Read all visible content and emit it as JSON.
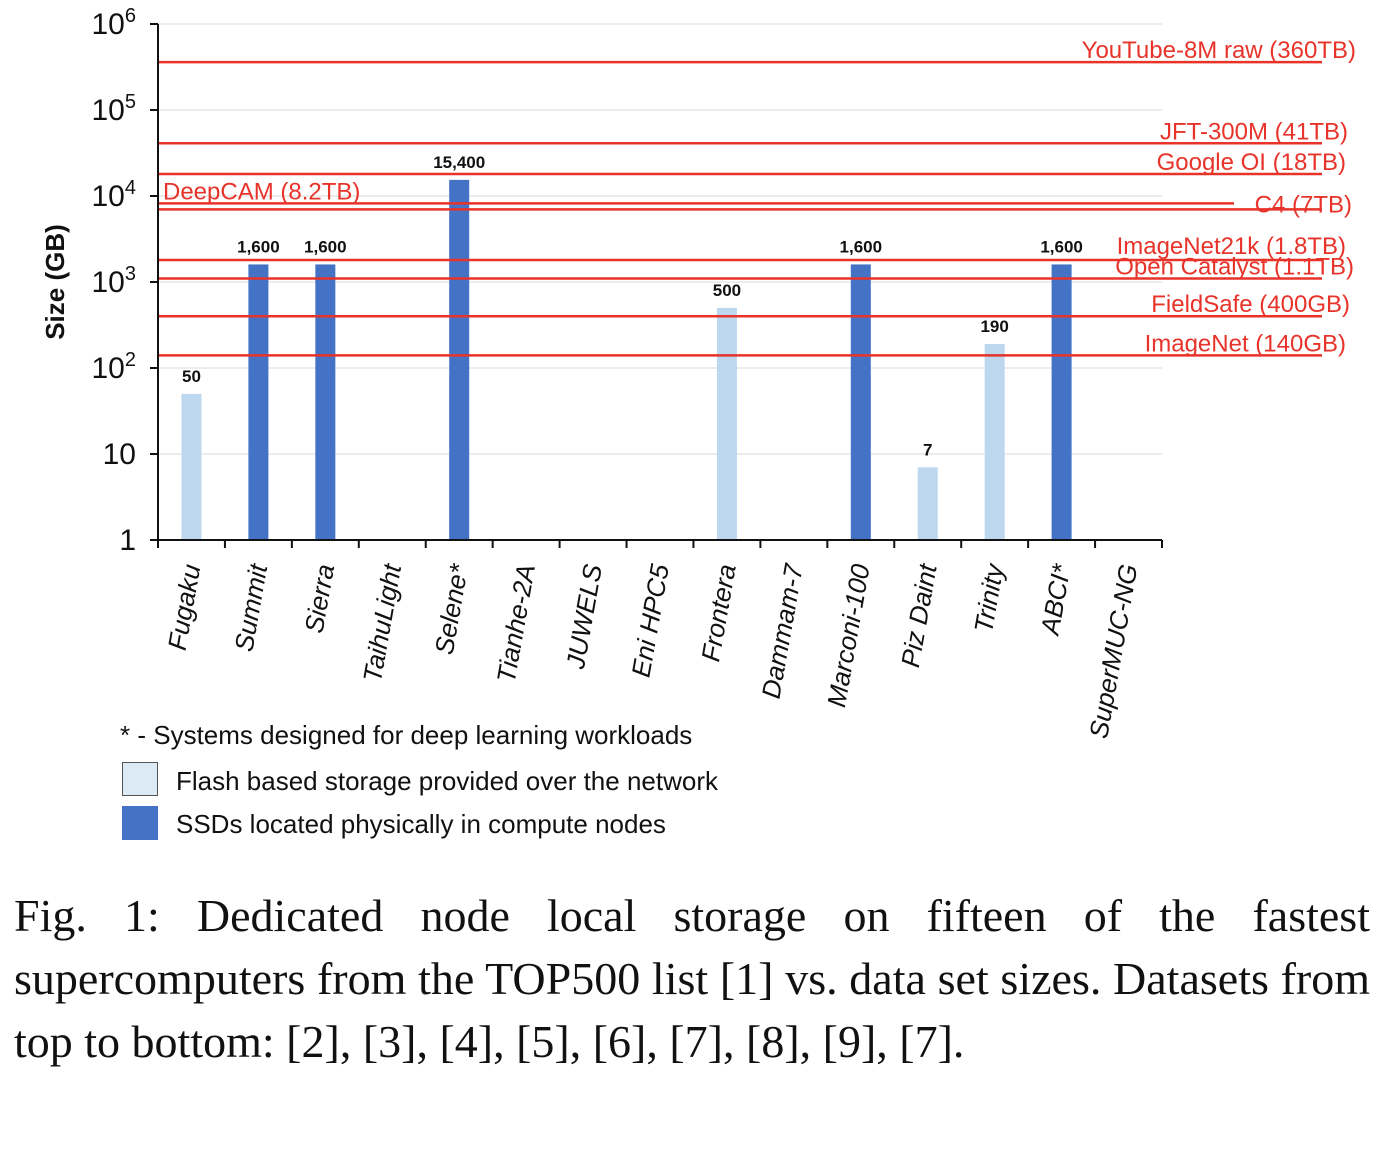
{
  "chart_data": {
    "type": "bar",
    "y_scale": "log",
    "ylabel": "Size (GB)",
    "ylim": [
      1,
      1000000
    ],
    "yticks": [
      {
        "value": 1,
        "label": "1",
        "sup": ""
      },
      {
        "value": 10,
        "label": "10",
        "sup": ""
      },
      {
        "value": 100,
        "label": "10",
        "sup": "2"
      },
      {
        "value": 1000,
        "label": "10",
        "sup": "3"
      },
      {
        "value": 10000,
        "label": "10",
        "sup": "4"
      },
      {
        "value": 100000,
        "label": "10",
        "sup": "5"
      },
      {
        "value": 1000000,
        "label": "10",
        "sup": "6"
      }
    ],
    "grid": "horizontal",
    "categories": [
      "Fugaku",
      "Summit",
      "Sierra",
      "TaihuLight",
      "Selene*",
      "Tianhe-2A",
      "JUWELS",
      "Eni HPC5",
      "Frontera",
      "Dammam-7",
      "Marconi-100",
      "Piz Daint",
      "Trinity",
      "ABCI*",
      "SuperMUC-NG"
    ],
    "series": [
      {
        "name": "Flash based storage provided over the network",
        "color": "#bdd7ee",
        "values": [
          50,
          null,
          null,
          null,
          null,
          null,
          null,
          null,
          500,
          null,
          null,
          7,
          190,
          null,
          null
        ]
      },
      {
        "name": "SSDs located physically in compute nodes",
        "color": "#4472c4",
        "values": [
          null,
          1600,
          1600,
          null,
          15400,
          null,
          null,
          null,
          null,
          null,
          1600,
          null,
          null,
          1600,
          null
        ]
      }
    ],
    "data_labels": [
      "50",
      "1,600",
      "1,600",
      "",
      "15,400",
      "",
      "",
      "",
      "500",
      "",
      "1,600",
      "7",
      "190",
      "1,600",
      ""
    ],
    "reference_lines": [
      {
        "label": "YouTube-8M raw (360TB)",
        "value": 360000
      },
      {
        "label": "JFT-300M (41TB)",
        "value": 41000
      },
      {
        "label": "Google OI (18TB)",
        "value": 18000
      },
      {
        "label": "DeepCAM (8.2TB)",
        "value": 8200
      },
      {
        "label": "C4 (7TB)",
        "value": 7000
      },
      {
        "label": "ImageNet21k (1.8TB)",
        "value": 1800
      },
      {
        "label": "Open Catalyst (1.1TB)",
        "value": 1100
      },
      {
        "label": "FieldSafe (400GB)",
        "value": 400
      },
      {
        "label": "ImageNet (140GB)",
        "value": 140
      }
    ],
    "reference_color": "#e8332a"
  },
  "legend": {
    "note": "* - Systems designed for deep learning workloads",
    "flash": "Flash based storage provided over the network",
    "ssd": "SSDs located physically in compute nodes"
  },
  "caption": "Fig. 1: Dedicated node local storage on fifteen of the fastest supercomputers from the TOP500 list [1] vs. data set sizes. Datasets from top to bottom: [2], [3], [4], [5], [6], [7], [8], [9], [7]."
}
